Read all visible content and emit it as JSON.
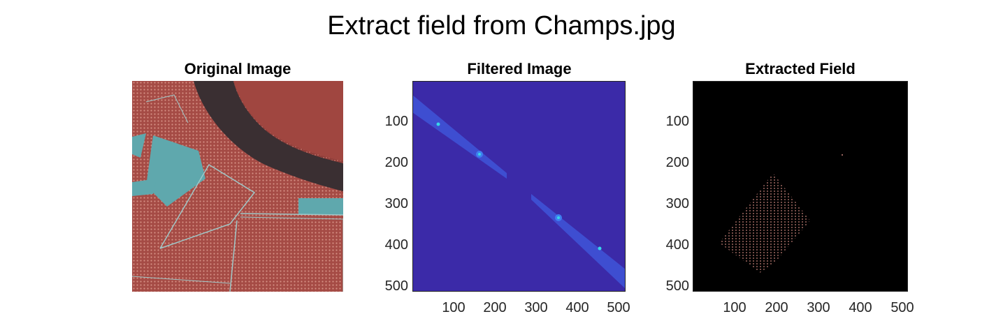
{
  "figure": {
    "title": "Extract field from Champs.jpg"
  },
  "panels": [
    {
      "title": "Original Image"
    },
    {
      "title": "Filtered Image"
    },
    {
      "title": "Extracted Field"
    }
  ],
  "axes": {
    "ticks": [
      "100",
      "200",
      "300",
      "400",
      "500"
    ]
  },
  "colors": {
    "filtered_bg": "#3b2aa8",
    "extracted_bg": "#000000",
    "original_field": "#b0524a",
    "original_water": "#5fa8ad",
    "river": "#3a2f32"
  }
}
